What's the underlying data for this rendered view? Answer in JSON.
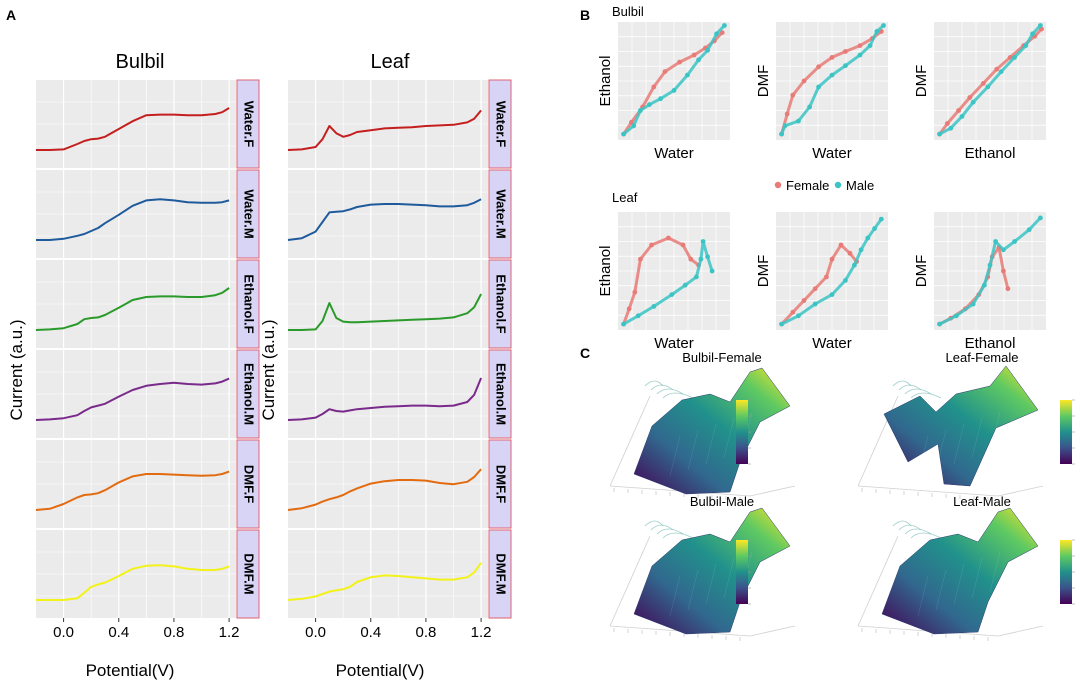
{
  "colors": {
    "panel_bg": "#ebebeb",
    "grid": "#ffffff",
    "strip_fill": "#d8d4f6",
    "strip_border": "#e06070",
    "female": "#e87b77",
    "male": "#3cc4c4",
    "water_f": "#c41e1e",
    "water_m": "#1f5a9c",
    "ethanol_f": "#2a9a2a",
    "ethanol_m": "#7a2a8a",
    "dmf_f": "#e26b10",
    "dmf_m": "#f2f21a"
  },
  "panel_a": {
    "label": "A",
    "ylabel": "Current (a.u.)",
    "xlabel": "Potential(V)",
    "columns": [
      "Bulbil",
      "Leaf"
    ],
    "rows": [
      "Water.F",
      "Water.M",
      "Ethanol.F",
      "Ethanol.M",
      "DMF.F",
      "DMF.M"
    ]
  },
  "panel_b": {
    "label": "B",
    "group_titles": [
      "Bulbil",
      "Leaf"
    ],
    "legend": [
      "Female",
      "Male"
    ]
  },
  "panel_c": {
    "label": "C",
    "titles": [
      "Bulbil-Female",
      "Leaf-Female",
      "Bulbil-Male",
      "Leaf-Male"
    ]
  },
  "chart_data": [
    {
      "type": "line",
      "title": "Bulbil",
      "xlabel": "Potential(V)",
      "ylabel": "Current (a.u.)",
      "xlim": [
        -0.2,
        1.25
      ],
      "xticks": [
        "0.0",
        "0.4",
        "0.8",
        "1.2"
      ],
      "x": [
        -0.2,
        -0.1,
        0.0,
        0.1,
        0.15,
        0.2,
        0.25,
        0.3,
        0.4,
        0.5,
        0.6,
        0.7,
        0.8,
        0.9,
        1.0,
        1.1,
        1.15,
        1.2
      ],
      "series": [
        {
          "name": "Water.F",
          "values": [
            0.0,
            0.0,
            0.01,
            0.1,
            0.15,
            0.18,
            0.19,
            0.22,
            0.35,
            0.48,
            0.58,
            0.59,
            0.59,
            0.58,
            0.58,
            0.6,
            0.63,
            0.7
          ]
        },
        {
          "name": "Water.M",
          "values": [
            0.0,
            0.0,
            0.02,
            0.07,
            0.1,
            0.15,
            0.2,
            0.28,
            0.42,
            0.57,
            0.66,
            0.68,
            0.66,
            0.63,
            0.62,
            0.62,
            0.63,
            0.66
          ]
        },
        {
          "name": "Ethanol.F",
          "values": [
            0.0,
            0.01,
            0.03,
            0.1,
            0.18,
            0.2,
            0.21,
            0.25,
            0.37,
            0.5,
            0.55,
            0.56,
            0.56,
            0.55,
            0.55,
            0.58,
            0.62,
            0.7
          ]
        },
        {
          "name": "Ethanol.M",
          "values": [
            0.0,
            0.01,
            0.03,
            0.08,
            0.15,
            0.21,
            0.24,
            0.27,
            0.39,
            0.5,
            0.57,
            0.6,
            0.62,
            0.6,
            0.59,
            0.61,
            0.64,
            0.69
          ]
        },
        {
          "name": "DMF.F",
          "values": [
            0.0,
            0.02,
            0.1,
            0.21,
            0.25,
            0.26,
            0.28,
            0.33,
            0.46,
            0.56,
            0.6,
            0.6,
            0.59,
            0.58,
            0.57,
            0.58,
            0.6,
            0.64
          ]
        },
        {
          "name": "DMF.M",
          "values": [
            0.0,
            0.0,
            0.0,
            0.03,
            0.12,
            0.22,
            0.26,
            0.29,
            0.4,
            0.52,
            0.57,
            0.58,
            0.56,
            0.52,
            0.5,
            0.5,
            0.52,
            0.56
          ]
        }
      ]
    },
    {
      "type": "line",
      "title": "Leaf",
      "xlabel": "Potential(V)",
      "ylabel": "Current (a.u.)",
      "xlim": [
        -0.2,
        1.25
      ],
      "xticks": [
        "0.0",
        "0.4",
        "0.8",
        "1.2"
      ],
      "x": [
        -0.2,
        -0.1,
        0.0,
        0.05,
        0.1,
        0.15,
        0.2,
        0.25,
        0.3,
        0.4,
        0.5,
        0.6,
        0.7,
        0.8,
        0.9,
        1.0,
        1.1,
        1.15,
        1.2
      ],
      "series": [
        {
          "name": "Water.F",
          "values": [
            0.0,
            0.01,
            0.05,
            0.18,
            0.4,
            0.28,
            0.22,
            0.25,
            0.3,
            0.33,
            0.36,
            0.37,
            0.38,
            0.4,
            0.41,
            0.42,
            0.46,
            0.52,
            0.66
          ]
        },
        {
          "name": "Water.M",
          "values": [
            0.0,
            0.03,
            0.14,
            0.3,
            0.46,
            0.47,
            0.48,
            0.51,
            0.55,
            0.59,
            0.6,
            0.6,
            0.59,
            0.58,
            0.56,
            0.56,
            0.58,
            0.62,
            0.68
          ]
        },
        {
          "name": "Ethanol.F",
          "values": [
            0.0,
            0.0,
            0.01,
            0.15,
            0.45,
            0.2,
            0.14,
            0.13,
            0.13,
            0.14,
            0.15,
            0.16,
            0.17,
            0.18,
            0.19,
            0.21,
            0.28,
            0.38,
            0.6
          ]
        },
        {
          "name": "Ethanol.M",
          "values": [
            0.0,
            0.01,
            0.04,
            0.1,
            0.18,
            0.15,
            0.14,
            0.16,
            0.18,
            0.2,
            0.22,
            0.23,
            0.24,
            0.24,
            0.23,
            0.24,
            0.3,
            0.42,
            0.7
          ]
        },
        {
          "name": "DMF.F",
          "values": [
            0.0,
            0.03,
            0.09,
            0.14,
            0.18,
            0.21,
            0.25,
            0.31,
            0.36,
            0.44,
            0.48,
            0.5,
            0.5,
            0.49,
            0.45,
            0.43,
            0.47,
            0.55,
            0.68
          ]
        },
        {
          "name": "DMF.M",
          "values": [
            0.0,
            0.02,
            0.06,
            0.1,
            0.14,
            0.16,
            0.18,
            0.22,
            0.3,
            0.38,
            0.41,
            0.4,
            0.38,
            0.36,
            0.34,
            0.34,
            0.38,
            0.46,
            0.62
          ]
        }
      ]
    },
    {
      "type": "scatter",
      "title": "Bulbil",
      "legend": [
        "Female",
        "Male"
      ],
      "plots": [
        {
          "xlabel": "Water",
          "ylabel": "Ethanol",
          "female": [
            [
              0.05,
              0.05
            ],
            [
              0.12,
              0.15
            ],
            [
              0.22,
              0.28
            ],
            [
              0.32,
              0.45
            ],
            [
              0.42,
              0.58
            ],
            [
              0.55,
              0.66
            ],
            [
              0.68,
              0.72
            ],
            [
              0.78,
              0.78
            ],
            [
              0.86,
              0.84
            ],
            [
              0.93,
              0.91
            ]
          ],
          "male": [
            [
              0.05,
              0.05
            ],
            [
              0.14,
              0.12
            ],
            [
              0.2,
              0.25
            ],
            [
              0.28,
              0.3
            ],
            [
              0.38,
              0.35
            ],
            [
              0.5,
              0.42
            ],
            [
              0.62,
              0.55
            ],
            [
              0.72,
              0.68
            ],
            [
              0.8,
              0.76
            ],
            [
              0.88,
              0.9
            ],
            [
              0.95,
              0.97
            ]
          ]
        },
        {
          "xlabel": "Water",
          "ylabel": "DMF",
          "female": [
            [
              0.05,
              0.05
            ],
            [
              0.1,
              0.22
            ],
            [
              0.15,
              0.38
            ],
            [
              0.25,
              0.5
            ],
            [
              0.38,
              0.62
            ],
            [
              0.5,
              0.7
            ],
            [
              0.62,
              0.75
            ],
            [
              0.75,
              0.8
            ],
            [
              0.86,
              0.86
            ],
            [
              0.94,
              0.92
            ]
          ],
          "male": [
            [
              0.05,
              0.05
            ],
            [
              0.08,
              0.12
            ],
            [
              0.2,
              0.16
            ],
            [
              0.3,
              0.28
            ],
            [
              0.38,
              0.45
            ],
            [
              0.5,
              0.55
            ],
            [
              0.62,
              0.63
            ],
            [
              0.75,
              0.72
            ],
            [
              0.84,
              0.8
            ],
            [
              0.9,
              0.92
            ],
            [
              0.96,
              0.97
            ]
          ]
        },
        {
          "xlabel": "Ethanol",
          "ylabel": "DMF",
          "female": [
            [
              0.05,
              0.05
            ],
            [
              0.12,
              0.14
            ],
            [
              0.22,
              0.25
            ],
            [
              0.32,
              0.36
            ],
            [
              0.44,
              0.48
            ],
            [
              0.56,
              0.6
            ],
            [
              0.68,
              0.7
            ],
            [
              0.8,
              0.8
            ],
            [
              0.9,
              0.88
            ],
            [
              0.96,
              0.94
            ]
          ],
          "male": [
            [
              0.05,
              0.05
            ],
            [
              0.15,
              0.1
            ],
            [
              0.25,
              0.2
            ],
            [
              0.35,
              0.32
            ],
            [
              0.48,
              0.45
            ],
            [
              0.6,
              0.58
            ],
            [
              0.72,
              0.7
            ],
            [
              0.82,
              0.8
            ],
            [
              0.88,
              0.9
            ],
            [
              0.95,
              0.97
            ]
          ]
        }
      ]
    },
    {
      "type": "scatter",
      "title": "Leaf",
      "legend": [
        "Female",
        "Male"
      ],
      "plots": [
        {
          "xlabel": "Water",
          "ylabel": "Ethanol",
          "female": [
            [
              0.05,
              0.05
            ],
            [
              0.1,
              0.18
            ],
            [
              0.15,
              0.32
            ],
            [
              0.2,
              0.6
            ],
            [
              0.3,
              0.72
            ],
            [
              0.45,
              0.78
            ],
            [
              0.58,
              0.72
            ],
            [
              0.65,
              0.6
            ],
            [
              0.72,
              0.55
            ]
          ],
          "male": [
            [
              0.05,
              0.05
            ],
            [
              0.18,
              0.12
            ],
            [
              0.32,
              0.2
            ],
            [
              0.48,
              0.3
            ],
            [
              0.6,
              0.38
            ],
            [
              0.7,
              0.45
            ],
            [
              0.74,
              0.6
            ],
            [
              0.76,
              0.75
            ],
            [
              0.8,
              0.62
            ],
            [
              0.84,
              0.5
            ]
          ]
        },
        {
          "xlabel": "Water",
          "ylabel": "DMF",
          "female": [
            [
              0.05,
              0.05
            ],
            [
              0.15,
              0.15
            ],
            [
              0.25,
              0.25
            ],
            [
              0.35,
              0.35
            ],
            [
              0.45,
              0.45
            ],
            [
              0.5,
              0.6
            ],
            [
              0.58,
              0.72
            ],
            [
              0.66,
              0.65
            ],
            [
              0.72,
              0.58
            ]
          ],
          "male": [
            [
              0.05,
              0.05
            ],
            [
              0.2,
              0.12
            ],
            [
              0.35,
              0.22
            ],
            [
              0.5,
              0.3
            ],
            [
              0.62,
              0.42
            ],
            [
              0.7,
              0.55
            ],
            [
              0.76,
              0.68
            ],
            [
              0.82,
              0.78
            ],
            [
              0.88,
              0.86
            ],
            [
              0.94,
              0.94
            ]
          ]
        },
        {
          "xlabel": "Ethanol",
          "ylabel": "DMF",
          "female": [
            [
              0.05,
              0.05
            ],
            [
              0.15,
              0.1
            ],
            [
              0.28,
              0.18
            ],
            [
              0.4,
              0.3
            ],
            [
              0.48,
              0.45
            ],
            [
              0.52,
              0.62
            ],
            [
              0.58,
              0.7
            ],
            [
              0.62,
              0.5
            ],
            [
              0.66,
              0.35
            ]
          ],
          "male": [
            [
              0.05,
              0.05
            ],
            [
              0.2,
              0.12
            ],
            [
              0.35,
              0.22
            ],
            [
              0.45,
              0.38
            ],
            [
              0.5,
              0.55
            ],
            [
              0.55,
              0.75
            ],
            [
              0.62,
              0.68
            ],
            [
              0.72,
              0.75
            ],
            [
              0.85,
              0.85
            ],
            [
              0.95,
              0.95
            ]
          ]
        }
      ]
    }
  ]
}
